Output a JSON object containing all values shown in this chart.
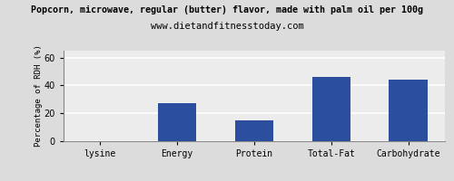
{
  "title": "Popcorn, microwave, regular (butter) flavor, made with palm oil per 100g",
  "subtitle": "www.dietandfitnesstoday.com",
  "categories": [
    "lysine",
    "Energy",
    "Protein",
    "Total-Fat",
    "Carbohydrate"
  ],
  "values": [
    0,
    27,
    15,
    46,
    44
  ],
  "bar_color": "#2b4f9e",
  "ylabel": "Percentage of RDH (%)",
  "ylim": [
    0,
    65
  ],
  "yticks": [
    0,
    20,
    40,
    60
  ],
  "background_color": "#dcdcdc",
  "plot_bg_color": "#ececec",
  "title_fontsize": 7.2,
  "subtitle_fontsize": 7.5,
  "ylabel_fontsize": 6.5,
  "tick_fontsize": 7,
  "grid_color": "#ffffff",
  "grid_linewidth": 1.2
}
